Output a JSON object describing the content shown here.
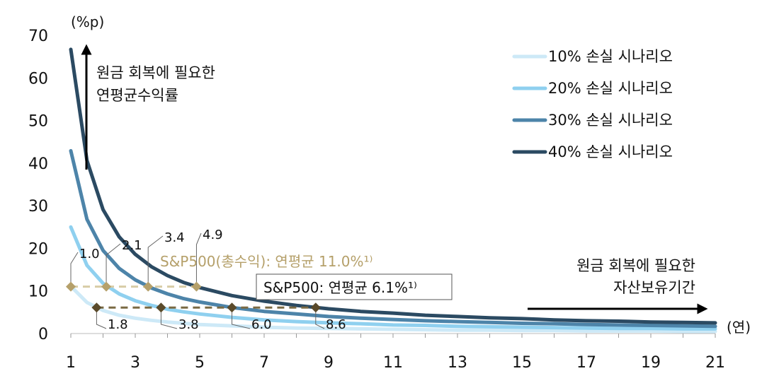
{
  "chart_data": {
    "type": "line",
    "x": [
      1,
      1.5,
      2,
      2.5,
      3,
      3.5,
      4,
      4.5,
      5,
      6,
      7,
      8,
      9,
      10,
      11,
      12,
      13,
      14,
      15,
      16,
      17,
      18,
      19,
      20,
      21
    ],
    "series": [
      {
        "name": "10% 손실 시나리오",
        "color": "#cde9f7",
        "values": [
          11.1,
          7.3,
          5.4,
          4.3,
          3.6,
          3.1,
          2.7,
          2.4,
          2.1,
          1.8,
          1.5,
          1.3,
          1.2,
          1.1,
          1.0,
          0.9,
          0.8,
          0.8,
          0.7,
          0.7,
          0.6,
          0.6,
          0.6,
          0.5,
          0.5
        ]
      },
      {
        "name": "20% 손실 시나리오",
        "color": "#8fd0ef",
        "values": [
          25.0,
          16.0,
          11.8,
          9.3,
          7.7,
          6.6,
          5.7,
          5.1,
          4.6,
          3.8,
          3.2,
          2.8,
          2.5,
          2.3,
          2.0,
          1.9,
          1.7,
          1.6,
          1.5,
          1.4,
          1.3,
          1.2,
          1.2,
          1.1,
          1.1
        ]
      },
      {
        "name": "30% 손실 시나리오",
        "color": "#4d84a9",
        "values": [
          42.9,
          26.8,
          19.5,
          15.3,
          12.6,
          10.7,
          9.3,
          8.2,
          7.4,
          6.1,
          5.2,
          4.6,
          4.0,
          3.6,
          3.3,
          3.0,
          2.8,
          2.6,
          2.4,
          2.3,
          2.1,
          2.0,
          1.9,
          1.8,
          1.7
        ]
      },
      {
        "name": "40% 손실 시나리오",
        "color": "#2b4a62",
        "values": [
          66.7,
          40.6,
          29.1,
          22.7,
          18.6,
          15.7,
          13.6,
          12.0,
          10.8,
          8.9,
          7.6,
          6.6,
          5.8,
          5.2,
          4.8,
          4.3,
          4.0,
          3.7,
          3.5,
          3.2,
          3.0,
          2.9,
          2.7,
          2.6,
          2.5
        ]
      }
    ],
    "ylim": [
      0,
      70
    ],
    "xlim": [
      1,
      21
    ],
    "yticks": [
      0,
      10,
      20,
      30,
      40,
      50,
      60,
      70
    ],
    "xticks": [
      1,
      3,
      5,
      7,
      9,
      11,
      13,
      15,
      17,
      19,
      21
    ],
    "ylabel": "(%p)",
    "xlabel": "(연)",
    "legend_position": "top-right",
    "grid": false,
    "annotations": {
      "y_arrow_text": [
        "원금 회복에 필요한",
        "연평균수익률"
      ],
      "x_arrow_text": [
        "원금 회복에 필요한",
        "자산보유기간"
      ]
    },
    "sp500_total": {
      "label": "S&P500(총수익): 연평균 11.0%¹⁾",
      "y": 11.0,
      "color": "#b5a06a",
      "points": [
        {
          "x": 1.0,
          "label": "1.0"
        },
        {
          "x": 2.1,
          "label": "2.1"
        },
        {
          "x": 3.4,
          "label": "3.4"
        },
        {
          "x": 4.9,
          "label": "4.9"
        }
      ]
    },
    "sp500_price": {
      "label": "S&P500: 연평균 6.1%¹⁾",
      "y": 6.1,
      "color": "#5a4a2a",
      "points": [
        {
          "x": 1.8,
          "label": "1.8"
        },
        {
          "x": 3.8,
          "label": "3.8"
        },
        {
          "x": 6.0,
          "label": "6.0"
        },
        {
          "x": 8.6,
          "label": "8.6"
        }
      ]
    }
  }
}
